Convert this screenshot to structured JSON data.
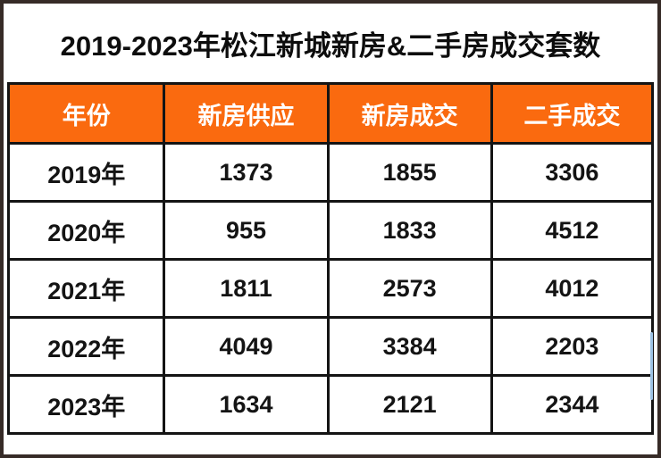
{
  "title": "2019-2023年松江新城新房&二手房成交套数",
  "table": {
    "columns": [
      "年份",
      "新房供应",
      "新房成交",
      "二手成交"
    ],
    "rows": [
      [
        "2019年",
        "1373",
        "1855",
        "3306"
      ],
      [
        "2020年",
        "955",
        "1833",
        "4512"
      ],
      [
        "2021年",
        "1811",
        "2573",
        "4012"
      ],
      [
        "2022年",
        "4049",
        "3384",
        "2203"
      ],
      [
        "2023年",
        "1634",
        "2121",
        "2344"
      ]
    ]
  },
  "colors": {
    "header_bg": "#fa6a0f",
    "header_text": "#ffffff",
    "frame_border": "#362b27",
    "grid_line": "#141414",
    "body_text": "#141414",
    "selection_accent": "#9cc2e5"
  },
  "chart_data": {
    "type": "table",
    "title": "2019-2023年松江新城新房&二手房成交套数",
    "categories": [
      "2019年",
      "2020年",
      "2021年",
      "2022年",
      "2023年"
    ],
    "series": [
      {
        "name": "新房供应",
        "values": [
          1373,
          955,
          1811,
          4049,
          1634
        ]
      },
      {
        "name": "新房成交",
        "values": [
          1855,
          1833,
          2573,
          3384,
          2121
        ]
      },
      {
        "name": "二手成交",
        "values": [
          3306,
          4512,
          4012,
          2203,
          2344
        ]
      }
    ]
  }
}
